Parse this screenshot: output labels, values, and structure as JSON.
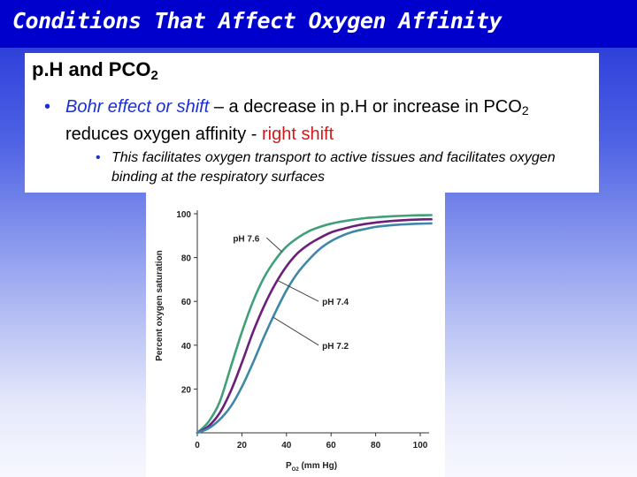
{
  "slide": {
    "title": "Conditions That Affect Oxygen Affinity",
    "heading_main": "p.H and PCO",
    "heading_sub": "2",
    "bullet1": {
      "lead": "Bohr effect or shift",
      "mid1": " – a decrease in p.H or increase in PCO",
      "sub": "2",
      "mid2": " reduces oxygen affinity - ",
      "tail": "right shift"
    },
    "bullet2": "This facilitates oxygen transport to active tissues and facilitates oxygen binding at the respiratory surfaces"
  },
  "colors": {
    "title_bar": "#0000cc",
    "accent_blue": "#1a2fd6",
    "accent_red": "#d21a1a",
    "curve_ph76": "#3fa07a",
    "curve_ph74": "#6b1f7a",
    "curve_ph72": "#3f87a8"
  },
  "chart_data": {
    "type": "line",
    "xlabel_main": "P",
    "xlabel_sub": "O2",
    "xlabel_unit": " (mm Hg)",
    "ylabel": "Percent oxygen saturation",
    "xlim": [
      0,
      100
    ],
    "ylim": [
      0,
      100
    ],
    "xticks": [
      0,
      20,
      40,
      60,
      80,
      100
    ],
    "yticks": [
      20,
      40,
      60,
      80,
      100
    ],
    "series": [
      {
        "name": "pH 7.6",
        "x": [
          0,
          5,
          10,
          15,
          20,
          25,
          30,
          35,
          40,
          45,
          50,
          55,
          60,
          65,
          70,
          75,
          80,
          85,
          90,
          95,
          100,
          105
        ],
        "y": [
          0,
          5,
          14,
          30,
          46,
          60,
          71,
          79,
          85,
          89,
          92,
          94,
          95.5,
          96.5,
          97.3,
          98,
          98.4,
          98.7,
          99,
          99.2,
          99.3,
          99.4
        ]
      },
      {
        "name": "pH 7.4",
        "x": [
          0,
          5,
          10,
          15,
          20,
          25,
          30,
          35,
          40,
          45,
          50,
          55,
          60,
          65,
          70,
          75,
          80,
          85,
          90,
          95,
          100,
          105
        ],
        "y": [
          0,
          3,
          9,
          19,
          32,
          46,
          58,
          68,
          76,
          82,
          86,
          89,
          91.5,
          93,
          94.3,
          95.3,
          96,
          96.5,
          96.9,
          97.2,
          97.4,
          97.5
        ]
      },
      {
        "name": "pH 7.2",
        "x": [
          0,
          5,
          10,
          15,
          20,
          25,
          30,
          35,
          40,
          45,
          50,
          55,
          60,
          65,
          70,
          75,
          80,
          85,
          90,
          95,
          100,
          105
        ],
        "y": [
          0,
          2,
          6,
          12,
          21,
          32,
          44,
          55,
          65,
          73,
          79,
          84,
          87.5,
          90,
          91.8,
          93,
          94,
          94.6,
          95,
          95.3,
          95.5,
          95.6
        ]
      }
    ],
    "annotations": [
      {
        "label": "pH 7.6",
        "series": 0,
        "at_x": 38,
        "text_x": 16,
        "text_y": 89,
        "anchor": "start"
      },
      {
        "label": "pH 7.4",
        "series": 1,
        "at_x": 36,
        "text_x": 56,
        "text_y": 60,
        "anchor": "start"
      },
      {
        "label": "pH 7.2",
        "series": 2,
        "at_x": 34,
        "text_x": 56,
        "text_y": 40,
        "anchor": "start"
      }
    ]
  }
}
